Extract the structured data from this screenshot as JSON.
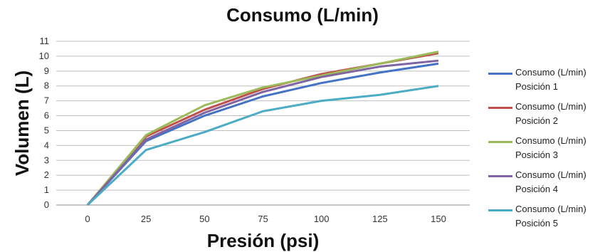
{
  "chart_data": {
    "type": "line",
    "title": "Consumo (L/min)",
    "xlabel": "Presión (psi)",
    "ylabel": "Volumen (L)",
    "x": [
      0,
      25,
      50,
      75,
      100,
      125,
      150
    ],
    "xlim": [
      0,
      150
    ],
    "ylim": [
      0,
      11
    ],
    "yticks": [
      0,
      1,
      2,
      3,
      4,
      5,
      6,
      7,
      8,
      9,
      10,
      11
    ],
    "grid": true,
    "legend_position": "right",
    "series": [
      {
        "name": "Consumo (L/min)",
        "name2": "Posición 1",
        "color": "#4472C4",
        "values": [
          0,
          4.3,
          6.0,
          7.3,
          8.2,
          8.9,
          9.5
        ]
      },
      {
        "name": "Consumo (L/min)",
        "name2": "Posición 2",
        "color": "#C0504D",
        "values": [
          0,
          4.6,
          6.4,
          7.8,
          8.8,
          9.5,
          10.2
        ]
      },
      {
        "name": "Consumo (L/min)",
        "name2": "Posición 3",
        "color": "#9BBB59",
        "values": [
          0,
          4.7,
          6.7,
          7.9,
          8.7,
          9.5,
          10.3
        ]
      },
      {
        "name": "Consumo (L/min)",
        "name2": "Posición 4",
        "color": "#8064A2",
        "values": [
          0,
          4.4,
          6.2,
          7.6,
          8.6,
          9.3,
          9.7
        ]
      },
      {
        "name": "Consumo (L/min)",
        "name2": "Posición 5",
        "color": "#4BACC6",
        "values": [
          0,
          3.7,
          4.9,
          6.3,
          7.0,
          7.4,
          8.0
        ]
      }
    ]
  }
}
